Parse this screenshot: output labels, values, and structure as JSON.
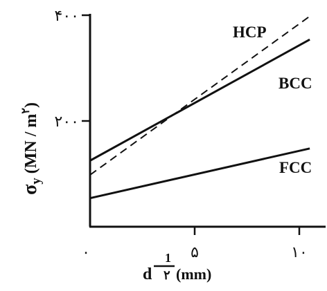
{
  "chart_data": {
    "type": "line",
    "x": [
      0,
      10.5
    ],
    "xlim": [
      0,
      10.5
    ],
    "ylim": [
      0,
      400
    ],
    "xticks": [
      {
        "value": 0,
        "label": "٠"
      },
      {
        "value": 5,
        "label": "۵"
      },
      {
        "value": 10,
        "label": "١٠"
      }
    ],
    "yticks": [
      {
        "value": 200,
        "label": "٢٠٠"
      },
      {
        "value": 400,
        "label": "۴٠٠"
      }
    ],
    "series": [
      {
        "name": "HCP",
        "values": [
          98,
          398
        ],
        "style": "dashed"
      },
      {
        "name": "BCC",
        "values": [
          125,
          354
        ],
        "style": "solid"
      },
      {
        "name": "FCC",
        "values": [
          54,
          148
        ],
        "style": "solid"
      }
    ],
    "xlabel": {
      "main": "d",
      "exp_num": "1",
      "exp_den": "٢",
      "unit": "(mm)"
    },
    "ylabel": {
      "symbol": "σ",
      "sub": "y",
      "unit_open": " (MN / m",
      "unit_exp": "٢",
      "unit_close": ")"
    },
    "grid": false,
    "colors": {
      "line": "#111111",
      "background": "#ffffff"
    }
  }
}
